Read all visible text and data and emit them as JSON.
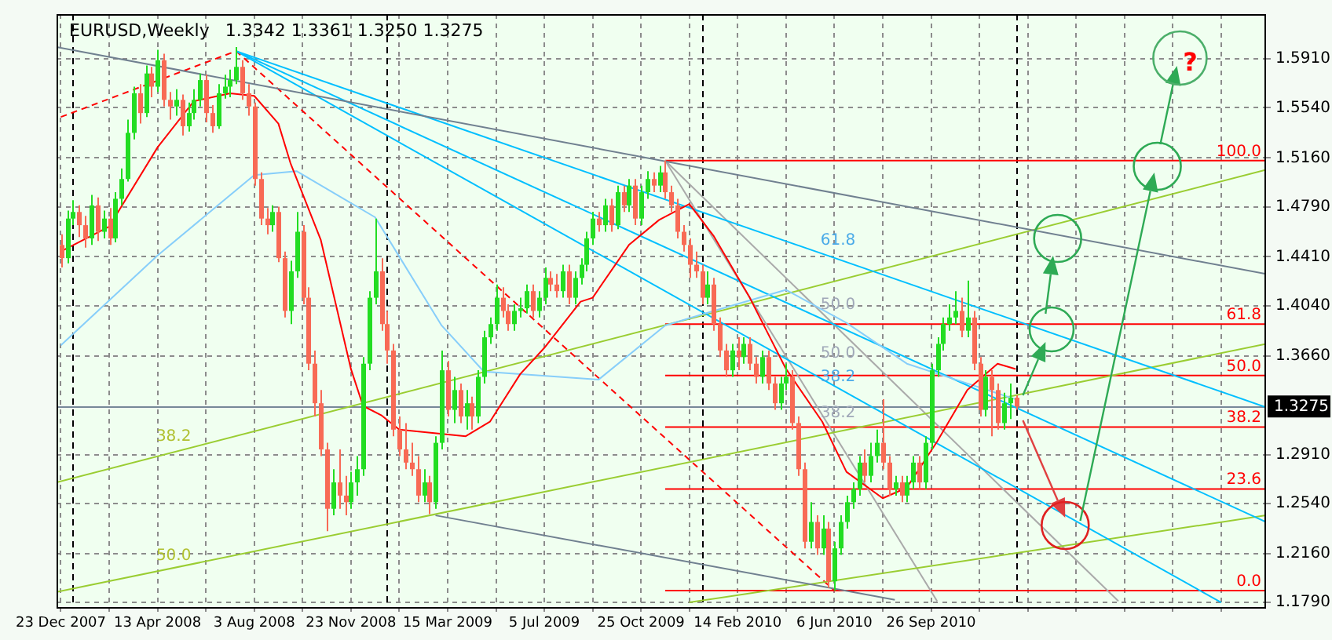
{
  "chart_data": {
    "type": "candlestick",
    "title": "EURUSD,Weekly",
    "subtitle": "1.3342 1.3361 1.3250 1.3275",
    "x": [
      "2007-12-23",
      "2007-12-30",
      "2008-01-06",
      "2008-01-13",
      "2008-01-20",
      "2008-01-27",
      "2008-02-03",
      "2008-02-10",
      "2008-02-17",
      "2008-02-24",
      "2008-03-02",
      "2008-03-09",
      "2008-03-16",
      "2008-03-23",
      "2008-03-30",
      "2008-04-06",
      "2008-04-13",
      "2008-04-20",
      "2008-04-27",
      "2008-05-04",
      "2008-05-11",
      "2008-05-18",
      "2008-05-25",
      "2008-06-01",
      "2008-06-08",
      "2008-06-15",
      "2008-06-22",
      "2008-06-29",
      "2008-07-06",
      "2008-07-13",
      "2008-07-20",
      "2008-07-27",
      "2008-08-03",
      "2008-08-10",
      "2008-08-17",
      "2008-08-24",
      "2008-08-31",
      "2008-09-07",
      "2008-09-14",
      "2008-09-21",
      "2008-09-28",
      "2008-10-05",
      "2008-10-12",
      "2008-10-19",
      "2008-10-26",
      "2008-11-02",
      "2008-11-09",
      "2008-11-16",
      "2008-11-23",
      "2008-11-30",
      "2008-12-07",
      "2008-12-14",
      "2008-12-21",
      "2008-12-28",
      "2009-01-04",
      "2009-01-11",
      "2009-01-18",
      "2009-01-25",
      "2009-02-01",
      "2009-02-08",
      "2009-02-15",
      "2009-02-22",
      "2009-03-01",
      "2009-03-08",
      "2009-03-15",
      "2009-03-22",
      "2009-03-29",
      "2009-04-05",
      "2009-04-12",
      "2009-04-19",
      "2009-04-26",
      "2009-05-03",
      "2009-05-10",
      "2009-05-17",
      "2009-05-24",
      "2009-05-31",
      "2009-06-07",
      "2009-06-14",
      "2009-06-21",
      "2009-06-28",
      "2009-07-05",
      "2009-07-12",
      "2009-07-19",
      "2009-07-26",
      "2009-08-02",
      "2009-08-09",
      "2009-08-16",
      "2009-08-23",
      "2009-08-30",
      "2009-09-06",
      "2009-09-13",
      "2009-09-20",
      "2009-09-27",
      "2009-10-04",
      "2009-10-11",
      "2009-10-18",
      "2009-10-25",
      "2009-11-01",
      "2009-11-08",
      "2009-11-15",
      "2009-11-22",
      "2009-11-29",
      "2009-12-06",
      "2009-12-13",
      "2009-12-20",
      "2009-12-27",
      "2010-01-03",
      "2010-01-10",
      "2010-01-17",
      "2010-01-24",
      "2010-01-31",
      "2010-02-07",
      "2010-02-14",
      "2010-02-21",
      "2010-02-28",
      "2010-03-07",
      "2010-03-14",
      "2010-03-21",
      "2010-03-28",
      "2010-04-04",
      "2010-04-11",
      "2010-04-18",
      "2010-04-25",
      "2010-05-02",
      "2010-05-09",
      "2010-05-16",
      "2010-05-23",
      "2010-05-30",
      "2010-06-06",
      "2010-06-13",
      "2010-06-20",
      "2010-06-27",
      "2010-07-04",
      "2010-07-11",
      "2010-07-18",
      "2010-07-25",
      "2010-08-01",
      "2010-08-08",
      "2010-08-15",
      "2010-08-22",
      "2010-08-29",
      "2010-09-05",
      "2010-09-12",
      "2010-09-19",
      "2010-09-26",
      "2010-10-03",
      "2010-10-10",
      "2010-10-17",
      "2010-10-24",
      "2010-10-31",
      "2010-11-07",
      "2010-11-14",
      "2010-11-21",
      "2010-11-28",
      "2010-12-05",
      "2010-12-12",
      "2010-12-19",
      "2010-12-26",
      "2011-01-02"
    ],
    "ohlc": [
      [
        1.45,
        1.458,
        1.433,
        1.44
      ],
      [
        1.44,
        1.476,
        1.436,
        1.47
      ],
      [
        1.47,
        1.484,
        1.465,
        1.475
      ],
      [
        1.475,
        1.48,
        1.456,
        1.465
      ],
      [
        1.465,
        1.472,
        1.448,
        1.455
      ],
      [
        1.455,
        1.488,
        1.45,
        1.48
      ],
      [
        1.48,
        1.486,
        1.453,
        1.46
      ],
      [
        1.46,
        1.476,
        1.455,
        1.47
      ],
      [
        1.47,
        1.478,
        1.45,
        1.455
      ],
      [
        1.455,
        1.49,
        1.452,
        1.485
      ],
      [
        1.485,
        1.508,
        1.48,
        1.5
      ],
      [
        1.5,
        1.545,
        1.498,
        1.535
      ],
      [
        1.535,
        1.57,
        1.53,
        1.565
      ],
      [
        1.565,
        1.572,
        1.542,
        1.55
      ],
      [
        1.55,
        1.586,
        1.547,
        1.58
      ],
      [
        1.58,
        1.585,
        1.562,
        1.57
      ],
      [
        1.57,
        1.598,
        1.566,
        1.59
      ],
      [
        1.59,
        1.595,
        1.555,
        1.56
      ],
      [
        1.56,
        1.566,
        1.545,
        1.555
      ],
      [
        1.555,
        1.568,
        1.548,
        1.56
      ],
      [
        1.56,
        1.564,
        1.533,
        1.54
      ],
      [
        1.54,
        1.558,
        1.536,
        1.55
      ],
      [
        1.55,
        1.568,
        1.545,
        1.56
      ],
      [
        1.56,
        1.58,
        1.555,
        1.575
      ],
      [
        1.575,
        1.579,
        1.543,
        1.55
      ],
      [
        1.55,
        1.556,
        1.535,
        1.54
      ],
      [
        1.54,
        1.572,
        1.538,
        1.565
      ],
      [
        1.565,
        1.579,
        1.561,
        1.57
      ],
      [
        1.57,
        1.583,
        1.562,
        1.575
      ],
      [
        1.575,
        1.6,
        1.572,
        1.585
      ],
      [
        1.585,
        1.59,
        1.56,
        1.565
      ],
      [
        1.565,
        1.572,
        1.548,
        1.555
      ],
      [
        1.555,
        1.558,
        1.495,
        1.5
      ],
      [
        1.5,
        1.505,
        1.465,
        1.47
      ],
      [
        1.47,
        1.478,
        1.458,
        1.465
      ],
      [
        1.465,
        1.48,
        1.46,
        1.475
      ],
      [
        1.475,
        1.479,
        1.437,
        1.44
      ],
      [
        1.44,
        1.445,
        1.395,
        1.4
      ],
      [
        1.4,
        1.438,
        1.39,
        1.43
      ],
      [
        1.43,
        1.475,
        1.425,
        1.46
      ],
      [
        1.46,
        1.465,
        1.405,
        1.41
      ],
      [
        1.41,
        1.418,
        1.355,
        1.36
      ],
      [
        1.36,
        1.37,
        1.32,
        1.33
      ],
      [
        1.33,
        1.34,
        1.29,
        1.295
      ],
      [
        1.295,
        1.3,
        1.233,
        1.25
      ],
      [
        1.25,
        1.28,
        1.245,
        1.27
      ],
      [
        1.27,
        1.295,
        1.25,
        1.26
      ],
      [
        1.26,
        1.275,
        1.245,
        1.255
      ],
      [
        1.255,
        1.278,
        1.25,
        1.27
      ],
      [
        1.27,
        1.29,
        1.26,
        1.28
      ],
      [
        1.28,
        1.365,
        1.275,
        1.36
      ],
      [
        1.36,
        1.415,
        1.355,
        1.41
      ],
      [
        1.41,
        1.47,
        1.405,
        1.43
      ],
      [
        1.43,
        1.44,
        1.385,
        1.39
      ],
      [
        1.39,
        1.4,
        1.36,
        1.37
      ],
      [
        1.37,
        1.375,
        1.305,
        1.31
      ],
      [
        1.31,
        1.32,
        1.29,
        1.295
      ],
      [
        1.295,
        1.315,
        1.28,
        1.285
      ],
      [
        1.285,
        1.3,
        1.275,
        1.28
      ],
      [
        1.28,
        1.29,
        1.255,
        1.26
      ],
      [
        1.26,
        1.28,
        1.255,
        1.27
      ],
      [
        1.27,
        1.275,
        1.246,
        1.255
      ],
      [
        1.255,
        1.305,
        1.25,
        1.3
      ],
      [
        1.3,
        1.37,
        1.295,
        1.355
      ],
      [
        1.355,
        1.362,
        1.32,
        1.325
      ],
      [
        1.325,
        1.35,
        1.315,
        1.34
      ],
      [
        1.34,
        1.345,
        1.315,
        1.32
      ],
      [
        1.32,
        1.34,
        1.31,
        1.33
      ],
      [
        1.33,
        1.335,
        1.31,
        1.32
      ],
      [
        1.32,
        1.355,
        1.315,
        1.35
      ],
      [
        1.35,
        1.385,
        1.345,
        1.38
      ],
      [
        1.38,
        1.395,
        1.375,
        1.39
      ],
      [
        1.39,
        1.42,
        1.385,
        1.41
      ],
      [
        1.41,
        1.418,
        1.395,
        1.4
      ],
      [
        1.4,
        1.405,
        1.385,
        1.39
      ],
      [
        1.39,
        1.405,
        1.385,
        1.4
      ],
      [
        1.4,
        1.41,
        1.395,
        1.402
      ],
      [
        1.402,
        1.42,
        1.398,
        1.415
      ],
      [
        1.415,
        1.42,
        1.395,
        1.4
      ],
      [
        1.4,
        1.415,
        1.395,
        1.41
      ],
      [
        1.41,
        1.433,
        1.405,
        1.425
      ],
      [
        1.425,
        1.43,
        1.415,
        1.42
      ],
      [
        1.42,
        1.428,
        1.41,
        1.415
      ],
      [
        1.415,
        1.435,
        1.41,
        1.43
      ],
      [
        1.43,
        1.435,
        1.405,
        1.41
      ],
      [
        1.41,
        1.43,
        1.405,
        1.425
      ],
      [
        1.425,
        1.44,
        1.42,
        1.435
      ],
      [
        1.435,
        1.46,
        1.43,
        1.455
      ],
      [
        1.455,
        1.475,
        1.45,
        1.47
      ],
      [
        1.47,
        1.475,
        1.46,
        1.465
      ],
      [
        1.465,
        1.485,
        1.46,
        1.48
      ],
      [
        1.48,
        1.485,
        1.46,
        1.465
      ],
      [
        1.465,
        1.495,
        1.462,
        1.49
      ],
      [
        1.49,
        1.495,
        1.475,
        1.48
      ],
      [
        1.48,
        1.5,
        1.475,
        1.495
      ],
      [
        1.495,
        1.5,
        1.465,
        1.47
      ],
      [
        1.47,
        1.495,
        1.465,
        1.49
      ],
      [
        1.49,
        1.506,
        1.485,
        1.5
      ],
      [
        1.5,
        1.505,
        1.49,
        1.495
      ],
      [
        1.495,
        1.51,
        1.49,
        1.505
      ],
      [
        1.505,
        1.514,
        1.485,
        1.49
      ],
      [
        1.49,
        1.495,
        1.475,
        1.48
      ],
      [
        1.48,
        1.485,
        1.455,
        1.46
      ],
      [
        1.46,
        1.465,
        1.445,
        1.45
      ],
      [
        1.45,
        1.455,
        1.425,
        1.435
      ],
      [
        1.435,
        1.445,
        1.425,
        1.43
      ],
      [
        1.43,
        1.435,
        1.405,
        1.41
      ],
      [
        1.41,
        1.43,
        1.405,
        1.42
      ],
      [
        1.42,
        1.425,
        1.385,
        1.39
      ],
      [
        1.39,
        1.395,
        1.365,
        1.37
      ],
      [
        1.37,
        1.375,
        1.35,
        1.355
      ],
      [
        1.355,
        1.375,
        1.35,
        1.37
      ],
      [
        1.37,
        1.38,
        1.355,
        1.365
      ],
      [
        1.365,
        1.38,
        1.36,
        1.375
      ],
      [
        1.375,
        1.38,
        1.355,
        1.36
      ],
      [
        1.36,
        1.365,
        1.345,
        1.35
      ],
      [
        1.35,
        1.37,
        1.345,
        1.365
      ],
      [
        1.365,
        1.37,
        1.34,
        1.345
      ],
      [
        1.345,
        1.35,
        1.325,
        1.33
      ],
      [
        1.33,
        1.35,
        1.325,
        1.345
      ],
      [
        1.345,
        1.36,
        1.34,
        1.35
      ],
      [
        1.35,
        1.355,
        1.31,
        1.315
      ],
      [
        1.315,
        1.32,
        1.275,
        1.28
      ],
      [
        1.28,
        1.285,
        1.22,
        1.225
      ],
      [
        1.225,
        1.255,
        1.22,
        1.24
      ],
      [
        1.24,
        1.245,
        1.215,
        1.22
      ],
      [
        1.22,
        1.245,
        1.215,
        1.235
      ],
      [
        1.235,
        1.24,
        1.19,
        1.195
      ],
      [
        1.195,
        1.225,
        1.188,
        1.22
      ],
      [
        1.22,
        1.245,
        1.215,
        1.24
      ],
      [
        1.24,
        1.26,
        1.235,
        1.255
      ],
      [
        1.255,
        1.27,
        1.25,
        1.265
      ],
      [
        1.265,
        1.29,
        1.26,
        1.285
      ],
      [
        1.285,
        1.295,
        1.27,
        1.275
      ],
      [
        1.275,
        1.3,
        1.27,
        1.29
      ],
      [
        1.29,
        1.31,
        1.285,
        1.3
      ],
      [
        1.3,
        1.333,
        1.28,
        1.285
      ],
      [
        1.285,
        1.29,
        1.26,
        1.265
      ],
      [
        1.265,
        1.275,
        1.26,
        1.27
      ],
      [
        1.27,
        1.275,
        1.255,
        1.26
      ],
      [
        1.26,
        1.275,
        1.255,
        1.27
      ],
      [
        1.27,
        1.29,
        1.265,
        1.285
      ],
      [
        1.285,
        1.29,
        1.265,
        1.27
      ],
      [
        1.27,
        1.305,
        1.265,
        1.3
      ],
      [
        1.3,
        1.36,
        1.295,
        1.355
      ],
      [
        1.355,
        1.38,
        1.35,
        1.375
      ],
      [
        1.375,
        1.395,
        1.37,
        1.39
      ],
      [
        1.39,
        1.405,
        1.385,
        1.395
      ],
      [
        1.395,
        1.415,
        1.39,
        1.4
      ],
      [
        1.4,
        1.41,
        1.38,
        1.385
      ],
      [
        1.385,
        1.423,
        1.38,
        1.395
      ],
      [
        1.395,
        1.4,
        1.355,
        1.36
      ],
      [
        1.36,
        1.365,
        1.32,
        1.325
      ],
      [
        1.325,
        1.355,
        1.32,
        1.35
      ],
      [
        1.35,
        1.355,
        1.305,
        1.34
      ],
      [
        1.34,
        1.345,
        1.31,
        1.315
      ],
      [
        1.315,
        1.338,
        1.31,
        1.33
      ],
      [
        1.33,
        1.345,
        1.318,
        1.3342
      ],
      [
        1.3342,
        1.3361,
        1.325,
        1.3275
      ]
    ],
    "colors": [
      "#f86a55",
      "#22dd22",
      "#22dd22",
      "#f86a55",
      "#f86a55",
      "#22dd22",
      "#f86a55",
      "#22dd22",
      "#f86a55",
      "#22dd22",
      "#22dd22",
      "#22dd22",
      "#22dd22",
      "#f86a55",
      "#22dd22",
      "#f86a55",
      "#22dd22",
      "#f86a55",
      "#f86a55",
      "#22dd22",
      "#f86a55",
      "#22dd22",
      "#22dd22",
      "#22dd22",
      "#f86a55",
      "#f86a55",
      "#22dd22",
      "#22dd22",
      "#22dd22",
      "#22dd22",
      "#f86a55",
      "#f86a55",
      "#f86a55",
      "#f86a55",
      "#f86a55",
      "#22dd22",
      "#f86a55",
      "#f86a55",
      "#22dd22",
      "#22dd22",
      "#f86a55",
      "#f86a55",
      "#f86a55",
      "#f86a55",
      "#f86a55",
      "#22dd22",
      "#f86a55",
      "#f86a55",
      "#22dd22",
      "#22dd22",
      "#22dd22",
      "#22dd22",
      "#22dd22",
      "#f86a55",
      "#f86a55",
      "#f86a55",
      "#f86a55",
      "#f86a55",
      "#f86a55",
      "#f86a55",
      "#22dd22",
      "#f86a55",
      "#22dd22",
      "#22dd22",
      "#f86a55",
      "#22dd22",
      "#f86a55",
      "#22dd22",
      "#f86a55",
      "#22dd22",
      "#22dd22",
      "#22dd22",
      "#22dd22",
      "#f86a55",
      "#f86a55",
      "#22dd22",
      "#22dd22",
      "#22dd22",
      "#f86a55",
      "#22dd22",
      "#22dd22",
      "#f86a55",
      "#f86a55",
      "#22dd22",
      "#f86a55",
      "#22dd22",
      "#22dd22",
      "#22dd22",
      "#22dd22",
      "#f86a55",
      "#22dd22",
      "#f86a55",
      "#22dd22",
      "#f86a55",
      "#22dd22",
      "#f86a55",
      "#22dd22",
      "#22dd22",
      "#f86a55",
      "#22dd22",
      "#f86a55",
      "#f86a55",
      "#f86a55",
      "#f86a55",
      "#f86a55",
      "#f86a55",
      "#f86a55",
      "#22dd22",
      "#f86a55",
      "#f86a55",
      "#f86a55",
      "#22dd22",
      "#f86a55",
      "#22dd22",
      "#f86a55",
      "#f86a55",
      "#22dd22",
      "#f86a55",
      "#f86a55",
      "#22dd22",
      "#22dd22",
      "#f86a55",
      "#f86a55",
      "#f86a55",
      "#22dd22",
      "#f86a55",
      "#22dd22",
      "#f86a55",
      "#22dd22",
      "#22dd22",
      "#22dd22",
      "#22dd22",
      "#22dd22",
      "#f86a55",
      "#22dd22",
      "#22dd22",
      "#f86a55",
      "#f86a55",
      "#22dd22",
      "#f86a55",
      "#22dd22",
      "#22dd22",
      "#f86a55",
      "#22dd22",
      "#22dd22",
      "#22dd22",
      "#22dd22",
      "#22dd22",
      "#22dd22",
      "#f86a55",
      "#22dd22",
      "#f86a55",
      "#f86a55",
      "#22dd22",
      "#f86a55",
      "#f86a55",
      "#22dd22",
      "#22dd22",
      "#f86a55"
    ],
    "series": [
      {
        "type": "line",
        "color": "#ff0000",
        "x": [
          "2007-12-23",
          "2008-02-17",
          "2008-04-13",
          "2008-05-25",
          "2008-07-06",
          "2008-08-03",
          "2008-08-31",
          "2008-09-14",
          "2008-10-19",
          "2008-11-23",
          "2008-12-07",
          "2008-12-28",
          "2009-01-18",
          "2009-04-05",
          "2009-05-03",
          "2009-06-07",
          "2009-07-05",
          "2009-08-16",
          "2009-08-30",
          "2009-10-11",
          "2009-11-15",
          "2009-12-20",
          "2010-01-17",
          "2010-02-28",
          "2010-04-11",
          "2010-05-23",
          "2010-06-20",
          "2010-08-01",
          "2010-08-29",
          "2010-10-03",
          "2010-11-07",
          "2010-12-12",
          "2011-01-02"
        ],
        "values": [
          1.445,
          1.464,
          1.524,
          1.559,
          1.565,
          1.563,
          1.542,
          1.512,
          1.454,
          1.356,
          1.328,
          1.321,
          1.31,
          1.305,
          1.316,
          1.352,
          1.372,
          1.407,
          1.41,
          1.45,
          1.469,
          1.481,
          1.457,
          1.41,
          1.356,
          1.316,
          1.278,
          1.258,
          1.266,
          1.301,
          1.34,
          1.36,
          1.356
        ]
      },
      {
        "type": "line",
        "color": "#87cefa",
        "x": [
          "2007-12-23",
          "2008-04-13",
          "2008-08-03",
          "2008-09-21",
          "2008-12-21",
          "2009-03-08",
          "2009-04-26",
          "2009-09-06",
          "2009-11-22",
          "2010-01-17",
          "2010-04-11",
          "2010-06-20",
          "2010-08-29",
          "2010-11-07",
          "2011-01-02"
        ],
        "values": [
          1.374,
          1.442,
          1.503,
          1.506,
          1.471,
          1.389,
          1.354,
          1.348,
          1.389,
          1.4,
          1.416,
          1.391,
          1.36,
          1.345,
          1.333
        ]
      },
      {
        "type": "line",
        "color": "#708090",
        "x": [
          "2007-12-18",
          "2011-10-19"
        ],
        "values": [
          1.6,
          1.428
        ]
      },
      {
        "type": "line",
        "color": "#708090",
        "x": [
          "2009-03-01",
          "2010-08-15"
        ],
        "values": [
          1.245,
          1.181
        ]
      },
      {
        "type": "line",
        "color": "#00bfff",
        "x": [
          "2008-07-13",
          "2011-10-19"
        ],
        "values": [
          1.597,
          1.327
        ]
      },
      {
        "type": "line",
        "color": "#00bfff",
        "x": [
          "2008-07-13",
          "2011-08-28"
        ],
        "values": [
          1.597,
          1.179
        ]
      },
      {
        "type": "line",
        "color": "#00bfff",
        "x": [
          "2008-07-13",
          "2011-10-19"
        ],
        "values": [
          1.597,
          1.24
        ]
      },
      {
        "type": "line",
        "color": "#9acd32",
        "x": [
          "2007-12-18",
          "2011-10-19"
        ],
        "values": [
          1.27,
          1.507
        ]
      },
      {
        "type": "line",
        "color": "#9acd32",
        "x": [
          "2007-12-18",
          "2011-10-19"
        ],
        "values": [
          1.187,
          1.375
        ]
      },
      {
        "type": "line",
        "color": "#9acd32",
        "x": [
          "2009-12-20",
          "2011-10-19"
        ],
        "values": [
          1.179,
          1.245
        ]
      },
      {
        "type": "line",
        "color": "#ff0000",
        "line_style": "dashed",
        "x": [
          "2007-12-23",
          "2008-07-13",
          "2010-06-06"
        ],
        "values": [
          1.547,
          1.597,
          1.188
        ]
      },
      {
        "type": "line",
        "color": "#a9a9a9",
        "x": [
          "2009-11-22",
          "2010-10-03"
        ],
        "values": [
          1.514,
          1.18
        ]
      },
      {
        "type": "line",
        "color": "#a9a9a9",
        "x": [
          "2009-11-22",
          "2011-05-01"
        ],
        "values": [
          1.514,
          1.18
        ]
      },
      {
        "type": "line",
        "name": "0.0",
        "color": "#ff0000",
        "x": [
          "2009-11-22",
          "2011-10-19"
        ],
        "values": [
          1.188,
          1.188
        ]
      },
      {
        "type": "line",
        "name": "23.6",
        "color": "#ff0000",
        "x": [
          "2009-11-22",
          "2011-10-19"
        ],
        "values": [
          1.265,
          1.265
        ]
      },
      {
        "type": "line",
        "name": "38.2",
        "color": "#ff0000",
        "x": [
          "2009-11-22",
          "2011-10-19"
        ],
        "values": [
          1.312,
          1.312
        ]
      },
      {
        "type": "line",
        "name": "50.0",
        "color": "#ff0000",
        "x": [
          "2009-11-22",
          "2011-10-19"
        ],
        "values": [
          1.351,
          1.351
        ]
      },
      {
        "type": "line",
        "name": "61.8",
        "color": "#ff0000",
        "x": [
          "2009-11-22",
          "2011-10-19"
        ],
        "values": [
          1.39,
          1.39
        ]
      },
      {
        "type": "line",
        "name": "100.0",
        "color": "#ff0000",
        "x": [
          "2009-11-22",
          "2011-10-19"
        ],
        "values": [
          1.514,
          1.514
        ]
      }
    ],
    "ref_lines": [
      {
        "axis": "x",
        "value": "2008-01-06",
        "color": "#000000",
        "line_style": "dashed"
      },
      {
        "axis": "x",
        "value": "2009-01-04",
        "color": "#000000",
        "line_style": "dashed"
      },
      {
        "axis": "x",
        "value": "2010-01-03",
        "color": "#000000",
        "line_style": "dashed"
      },
      {
        "axis": "x",
        "value": "2011-01-02",
        "color": "#000000",
        "line_style": "dashed"
      },
      {
        "axis": "y",
        "value": 1.3275,
        "label": "1.3275",
        "color": "#778899"
      }
    ],
    "annotations": [
      "?",
      "38.2",
      "50.0",
      "61.8",
      "50.0",
      "50.0",
      "38.2",
      "38.2"
    ],
    "xlim": [
      "2007-12-18",
      "2011-10-19"
    ],
    "xticks": [
      {
        "value": "2007-12-23",
        "label": "23 Dec 2007"
      },
      {
        "value": "2008-02-17",
        "label": null
      },
      {
        "value": "2008-04-13",
        "label": "13 Apr 2008"
      },
      {
        "value": "2008-06-08",
        "label": null
      },
      {
        "value": "2008-08-03",
        "label": "3 Aug 2008"
      },
      {
        "value": "2008-09-28",
        "label": null
      },
      {
        "value": "2008-11-23",
        "label": "23 Nov 2008"
      },
      {
        "value": "2009-01-18",
        "label": null
      },
      {
        "value": "2009-03-15",
        "label": "15 Mar 2009"
      },
      {
        "value": "2009-05-10",
        "label": null
      },
      {
        "value": "2009-07-05",
        "label": "5 Jul 2009"
      },
      {
        "value": "2009-08-30",
        "label": null
      },
      {
        "value": "2009-10-25",
        "label": "25 Oct 2009"
      },
      {
        "value": "2009-12-20",
        "label": null
      },
      {
        "value": "2010-02-14",
        "label": "14 Feb 2010"
      },
      {
        "value": "2010-04-11",
        "label": null
      },
      {
        "value": "2010-06-06",
        "label": "6 Jun 2010"
      },
      {
        "value": "2010-08-01",
        "label": null
      },
      {
        "value": "2010-09-26",
        "label": "26 Sep 2010"
      },
      {
        "value": "2010-11-21",
        "label": null
      },
      {
        "value": "2011-01-16",
        "label": null
      },
      {
        "value": "2011-03-13",
        "label": null
      },
      {
        "value": "2011-05-08",
        "label": null
      },
      {
        "value": "2011-07-03",
        "label": null
      },
      {
        "value": "2011-08-28",
        "label": null
      }
    ],
    "ylim": [
      1.1755,
      1.625
    ],
    "yticks": [
      {
        "value": 1.179,
        "label": "1.1790"
      },
      {
        "value": 1.216,
        "label": "1.2160"
      },
      {
        "value": 1.254,
        "label": "1.2540"
      },
      {
        "value": 1.291,
        "label": "1.2910"
      },
      {
        "value": 1.366,
        "label": "1.3660"
      },
      {
        "value": 1.404,
        "label": "1.4040"
      },
      {
        "value": 1.441,
        "label": "1.4410"
      },
      {
        "value": 1.479,
        "label": "1.4790"
      },
      {
        "value": 1.516,
        "label": "1.5160"
      },
      {
        "value": 1.554,
        "label": "1.5540"
      },
      {
        "value": 1.591,
        "label": "1.5910"
      }
    ],
    "grid": true
  }
}
